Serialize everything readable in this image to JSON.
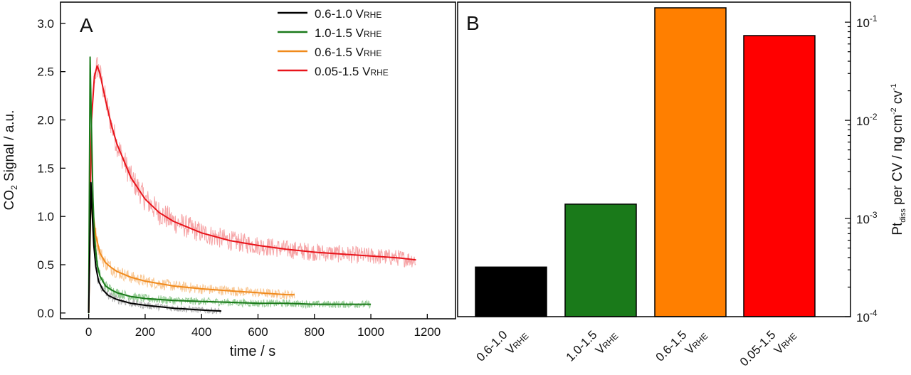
{
  "chart_data": [
    {
      "type": "line",
      "panel_label": "A",
      "title": "",
      "xlabel": "time / s",
      "ylabel": {
        "main": "CO",
        "sub": "2",
        "rest": " Signal / a.u."
      },
      "xlim": [
        -100,
        1300
      ],
      "ylim": [
        -0.06,
        3.22
      ],
      "xticks": [
        0,
        200,
        400,
        600,
        800,
        1000,
        1200
      ],
      "yticks": [
        0.0,
        0.5,
        1.0,
        1.5,
        2.0,
        2.5,
        3.0
      ],
      "legend_position": "top-right",
      "series": [
        {
          "name": "0.6-1.0 V",
          "name_sub": "RHE",
          "color": "#000000",
          "noise_color": "#a9a9a9",
          "x": [
            0,
            8,
            12,
            18,
            25,
            35,
            50,
            70,
            100,
            150,
            200,
            300,
            400,
            470
          ],
          "y": [
            0.0,
            1.35,
            1.05,
            0.7,
            0.48,
            0.33,
            0.24,
            0.18,
            0.14,
            0.1,
            0.08,
            0.05,
            0.03,
            0.02
          ]
        },
        {
          "name": "1.0-1.5 V",
          "name_sub": "RHE",
          "color": "#1a7a1a",
          "noise_color": "#8cc98c",
          "x": [
            0,
            5,
            10,
            15,
            20,
            30,
            40,
            60,
            80,
            100,
            150,
            200,
            300,
            400,
            500,
            600,
            700,
            800,
            900,
            1000
          ],
          "y": [
            0.0,
            2.65,
            1.9,
            1.2,
            0.8,
            0.5,
            0.38,
            0.28,
            0.24,
            0.21,
            0.17,
            0.15,
            0.13,
            0.12,
            0.11,
            0.1,
            0.1,
            0.09,
            0.09,
            0.09
          ]
        },
        {
          "name": "0.6-1.5 V",
          "name_sub": "RHE",
          "color": "#f08a1c",
          "noise_color": "#f8c28a",
          "x": [
            0,
            8,
            15,
            25,
            40,
            60,
            80,
            100,
            150,
            200,
            300,
            400,
            500,
            600,
            700,
            730
          ],
          "y": [
            0.0,
            1.25,
            1.05,
            0.8,
            0.62,
            0.52,
            0.47,
            0.43,
            0.37,
            0.33,
            0.28,
            0.25,
            0.23,
            0.21,
            0.19,
            0.19
          ]
        },
        {
          "name": "0.05-1.5 V",
          "name_sub": "RHE",
          "color": "#e8141b",
          "noise_color": "#f59a9c",
          "x": [
            0,
            10,
            20,
            30,
            40,
            60,
            80,
            100,
            150,
            200,
            250,
            300,
            400,
            500,
            600,
            700,
            800,
            900,
            1000,
            1100,
            1160
          ],
          "y": [
            0.0,
            2.0,
            2.45,
            2.56,
            2.48,
            2.2,
            1.95,
            1.75,
            1.4,
            1.18,
            1.04,
            0.95,
            0.83,
            0.75,
            0.7,
            0.66,
            0.63,
            0.61,
            0.59,
            0.57,
            0.55
          ]
        }
      ]
    },
    {
      "type": "bar",
      "panel_label": "B",
      "title": "",
      "yscale": "log",
      "ylim": [
        0.0001,
        0.16
      ],
      "ylabel": {
        "a": "Pt",
        "a_sub": "diss",
        "b": " per CV / ng cm",
        "b_sup": "-2",
        "c": " cv",
        "c_sup": "-1"
      },
      "yticks": [
        {
          "base": "10",
          "exp": "-4",
          "value": 0.0001
        },
        {
          "base": "10",
          "exp": "-3",
          "value": 0.001
        },
        {
          "base": "10",
          "exp": "-2",
          "value": 0.01
        },
        {
          "base": "10",
          "exp": "-1",
          "value": 0.1
        }
      ],
      "categories": [
        {
          "l1": "0.6-1.0",
          "l2": "V",
          "l2_sub": "RHE"
        },
        {
          "l1": "1.0-1.5",
          "l2": "V",
          "l2_sub": "RHE"
        },
        {
          "l1": "0.6-1.5",
          "l2": "V",
          "l2_sub": "RHE"
        },
        {
          "l1": "0.05-1.5",
          "l2": "V",
          "l2_sub": "RHE"
        }
      ],
      "values": [
        0.00032,
        0.0014,
        0.14,
        0.073
      ],
      "colors": [
        "#000000",
        "#1a7a1a",
        "#ff7f00",
        "#ff0000"
      ]
    }
  ]
}
